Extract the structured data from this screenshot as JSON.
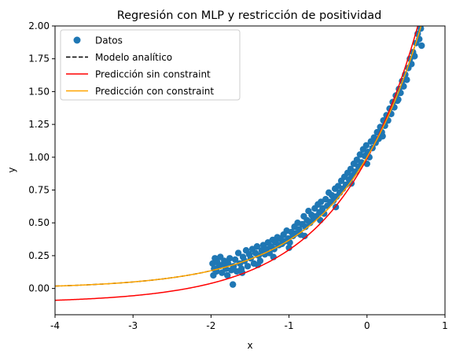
{
  "chart_data": {
    "type": "scatter",
    "title": "Regresión con MLP y restricción de positividad",
    "xlabel": "x",
    "ylabel": "y",
    "xlim": [
      -4,
      1
    ],
    "ylim": [
      -0.2,
      2.0
    ],
    "xticks": [
      "-4",
      "-3",
      "-2",
      "-1",
      "0",
      "1"
    ],
    "yticks": [
      "0.00",
      "0.25",
      "0.50",
      "0.75",
      "1.00",
      "1.25",
      "1.50",
      "1.75",
      "2.00"
    ],
    "grid": false,
    "legend_position": "top-left",
    "series": [
      {
        "name": "Datos",
        "kind": "scatter",
        "color": "#1f77b4",
        "points": [
          [
            -1.98,
            0.19
          ],
          [
            -1.97,
            0.1
          ],
          [
            -1.96,
            0.15
          ],
          [
            -1.95,
            0.23
          ],
          [
            -1.93,
            0.13
          ],
          [
            -1.92,
            0.2
          ],
          [
            -1.9,
            0.17
          ],
          [
            -1.88,
            0.24
          ],
          [
            -1.86,
            0.12
          ],
          [
            -1.85,
            0.18
          ],
          [
            -1.83,
            0.21
          ],
          [
            -1.81,
            0.15
          ],
          [
            -1.79,
            0.1
          ],
          [
            -1.78,
            0.19
          ],
          [
            -1.76,
            0.23
          ],
          [
            -1.74,
            0.14
          ],
          [
            -1.72,
            0.03
          ],
          [
            -1.71,
            0.17
          ],
          [
            -1.69,
            0.22
          ],
          [
            -1.67,
            0.13
          ],
          [
            -1.65,
            0.27
          ],
          [
            -1.63,
            0.19
          ],
          [
            -1.61,
            0.15
          ],
          [
            -1.59,
            0.24
          ],
          [
            -1.57,
            0.21
          ],
          [
            -1.55,
            0.29
          ],
          [
            -1.53,
            0.17
          ],
          [
            -1.51,
            0.26
          ],
          [
            -1.49,
            0.23
          ],
          [
            -1.47,
            0.3
          ],
          [
            -1.45,
            0.19
          ],
          [
            -1.43,
            0.27
          ],
          [
            -1.41,
            0.32
          ],
          [
            -1.39,
            0.25
          ],
          [
            -1.37,
            0.21
          ],
          [
            -1.35,
            0.29
          ],
          [
            -1.33,
            0.33
          ],
          [
            -1.31,
            0.26
          ],
          [
            -1.29,
            0.3
          ],
          [
            -1.27,
            0.35
          ],
          [
            -1.25,
            0.27
          ],
          [
            -1.23,
            0.32
          ],
          [
            -1.21,
            0.37
          ],
          [
            -1.19,
            0.3
          ],
          [
            -1.17,
            0.35
          ],
          [
            -1.15,
            0.39
          ],
          [
            -1.13,
            0.33
          ],
          [
            -1.11,
            0.38
          ],
          [
            -1.09,
            0.34
          ],
          [
            -1.07,
            0.41
          ],
          [
            -1.05,
            0.36
          ],
          [
            -1.03,
            0.44
          ],
          [
            -1.01,
            0.38
          ],
          [
            -0.99,
            0.35
          ],
          [
            -0.97,
            0.43
          ],
          [
            -0.95,
            0.4
          ],
          [
            -0.93,
            0.47
          ],
          [
            -0.91,
            0.42
          ],
          [
            -0.89,
            0.5
          ],
          [
            -0.87,
            0.45
          ],
          [
            -0.85,
            0.41
          ],
          [
            -0.83,
            0.49
          ],
          [
            -0.81,
            0.55
          ],
          [
            -0.79,
            0.47
          ],
          [
            -0.77,
            0.52
          ],
          [
            -0.75,
            0.59
          ],
          [
            -0.73,
            0.5
          ],
          [
            -0.71,
            0.56
          ],
          [
            -0.69,
            0.53
          ],
          [
            -0.67,
            0.61
          ],
          [
            -0.65,
            0.55
          ],
          [
            -0.63,
            0.64
          ],
          [
            -0.61,
            0.58
          ],
          [
            -0.59,
            0.66
          ],
          [
            -0.57,
            0.61
          ],
          [
            -0.55,
            0.57
          ],
          [
            -0.53,
            0.68
          ],
          [
            -0.51,
            0.63
          ],
          [
            -0.49,
            0.73
          ],
          [
            -0.47,
            0.66
          ],
          [
            -0.45,
            0.71
          ],
          [
            -0.43,
            0.67
          ],
          [
            -0.41,
            0.76
          ],
          [
            -0.39,
            0.7
          ],
          [
            -0.37,
            0.78
          ],
          [
            -0.35,
            0.73
          ],
          [
            -0.33,
            0.82
          ],
          [
            -0.31,
            0.76
          ],
          [
            -0.29,
            0.85
          ],
          [
            -0.27,
            0.79
          ],
          [
            -0.25,
            0.88
          ],
          [
            -0.23,
            0.83
          ],
          [
            -0.21,
            0.91
          ],
          [
            -0.19,
            0.86
          ],
          [
            -0.17,
            0.95
          ],
          [
            -0.15,
            0.89
          ],
          [
            -0.13,
            0.98
          ],
          [
            -0.11,
            0.93
          ],
          [
            -0.09,
            1.02
          ],
          [
            -0.07,
            0.96
          ],
          [
            -0.05,
            1.06
          ],
          [
            -0.03,
            1.01
          ],
          [
            -0.01,
            1.09
          ],
          [
            0.01,
            1.04
          ],
          [
            0.03,
            1.0
          ],
          [
            0.05,
            1.12
          ],
          [
            0.07,
            1.07
          ],
          [
            0.09,
            1.15
          ],
          [
            0.11,
            1.11
          ],
          [
            0.13,
            1.19
          ],
          [
            0.15,
            1.14
          ],
          [
            0.17,
            1.23
          ],
          [
            0.19,
            1.19
          ],
          [
            0.21,
            1.28
          ],
          [
            0.23,
            1.24
          ],
          [
            0.25,
            1.32
          ],
          [
            0.27,
            1.28
          ],
          [
            0.29,
            1.37
          ],
          [
            0.31,
            1.33
          ],
          [
            0.33,
            1.42
          ],
          [
            0.35,
            1.38
          ],
          [
            0.37,
            1.47
          ],
          [
            0.39,
            1.43
          ],
          [
            0.41,
            1.52
          ],
          [
            0.43,
            1.49
          ],
          [
            0.45,
            1.58
          ],
          [
            0.47,
            1.54
          ],
          [
            0.49,
            1.63
          ],
          [
            0.51,
            1.59
          ],
          [
            0.53,
            1.68
          ],
          [
            0.55,
            1.75
          ],
          [
            0.57,
            1.71
          ],
          [
            0.59,
            1.8
          ],
          [
            0.61,
            1.77
          ],
          [
            0.63,
            1.87
          ],
          [
            0.65,
            1.94
          ],
          [
            0.67,
            1.9
          ],
          [
            0.69,
            1.98
          ],
          [
            0.7,
            1.85
          ],
          [
            -1.6,
            0.12
          ],
          [
            -1.4,
            0.18
          ],
          [
            -1.2,
            0.24
          ],
          [
            -1.0,
            0.31
          ],
          [
            -0.8,
            0.4
          ],
          [
            -0.6,
            0.52
          ],
          [
            -0.4,
            0.62
          ],
          [
            -0.2,
            0.8
          ],
          [
            0.0,
            0.95
          ],
          [
            0.2,
            1.16
          ],
          [
            0.4,
            1.44
          ]
        ]
      },
      {
        "name": "Modelo analítico",
        "kind": "line",
        "style": "dashed",
        "color": "#000000",
        "a": 1.0,
        "b": 1.0,
        "c": 0.0
      },
      {
        "name": "Predicción sin constraint",
        "kind": "line",
        "style": "solid",
        "color": "#ff0000",
        "a": 1.1,
        "b": 1.0,
        "c": -0.11
      },
      {
        "name": "Predicción con constraint",
        "kind": "line",
        "style": "solid",
        "color": "#ffa500",
        "a": 1.0,
        "b": 1.0,
        "c": 0.0
      }
    ]
  }
}
